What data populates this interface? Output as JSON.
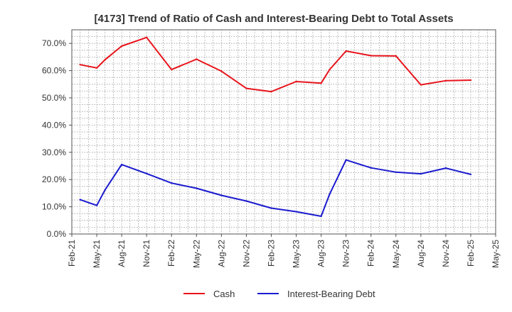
{
  "chart_data": {
    "type": "line",
    "title": "[4173]  Trend of Ratio of Cash and Interest-Bearing Debt to Total Assets",
    "xlabel": "",
    "ylabel": "",
    "ylim": [
      0,
      0.75
    ],
    "y_ticks": [
      0,
      0.1,
      0.2,
      0.3,
      0.4,
      0.5,
      0.6,
      0.7
    ],
    "y_tick_labels": [
      "0.0%",
      "10.0%",
      "20.0%",
      "30.0%",
      "40.0%",
      "50.0%",
      "60.0%",
      "70.0%"
    ],
    "x_range": [
      0,
      51
    ],
    "x_ticks": [
      0,
      3,
      6,
      9,
      12,
      15,
      18,
      21,
      24,
      27,
      30,
      33,
      36,
      39,
      42,
      45,
      48,
      51
    ],
    "x_tick_labels": [
      "Feb-21",
      "May-21",
      "Aug-21",
      "Nov-21",
      "Feb-22",
      "May-22",
      "Aug-22",
      "Nov-22",
      "Feb-23",
      "May-23",
      "Aug-23",
      "Nov-23",
      "Feb-24",
      "May-24",
      "Aug-24",
      "Nov-24",
      "Feb-25",
      "May-25"
    ],
    "grid": true,
    "legend_position": "bottom",
    "series": [
      {
        "name": "Cash",
        "color": "#e8131b",
        "x": [
          1,
          3,
          4,
          6,
          9,
          12,
          15,
          18,
          21,
          24,
          27,
          30,
          31,
          33,
          36,
          39,
          42,
          45,
          48
        ],
        "values": [
          0.622,
          0.61,
          0.64,
          0.69,
          0.722,
          0.604,
          0.642,
          0.598,
          0.535,
          0.523,
          0.56,
          0.554,
          0.603,
          0.672,
          0.655,
          0.654,
          0.548,
          0.563,
          0.565
        ]
      },
      {
        "name": "Interest-Bearing Debt",
        "color": "#1b1bd0",
        "x": [
          1,
          3,
          4,
          6,
          9,
          12,
          15,
          18,
          21,
          24,
          27,
          30,
          31,
          33,
          36,
          39,
          42,
          45,
          48
        ],
        "values": [
          0.126,
          0.105,
          0.162,
          0.255,
          0.222,
          0.187,
          0.168,
          0.142,
          0.121,
          0.095,
          0.082,
          0.065,
          0.145,
          0.272,
          0.243,
          0.227,
          0.221,
          0.242,
          0.219
        ]
      }
    ]
  }
}
